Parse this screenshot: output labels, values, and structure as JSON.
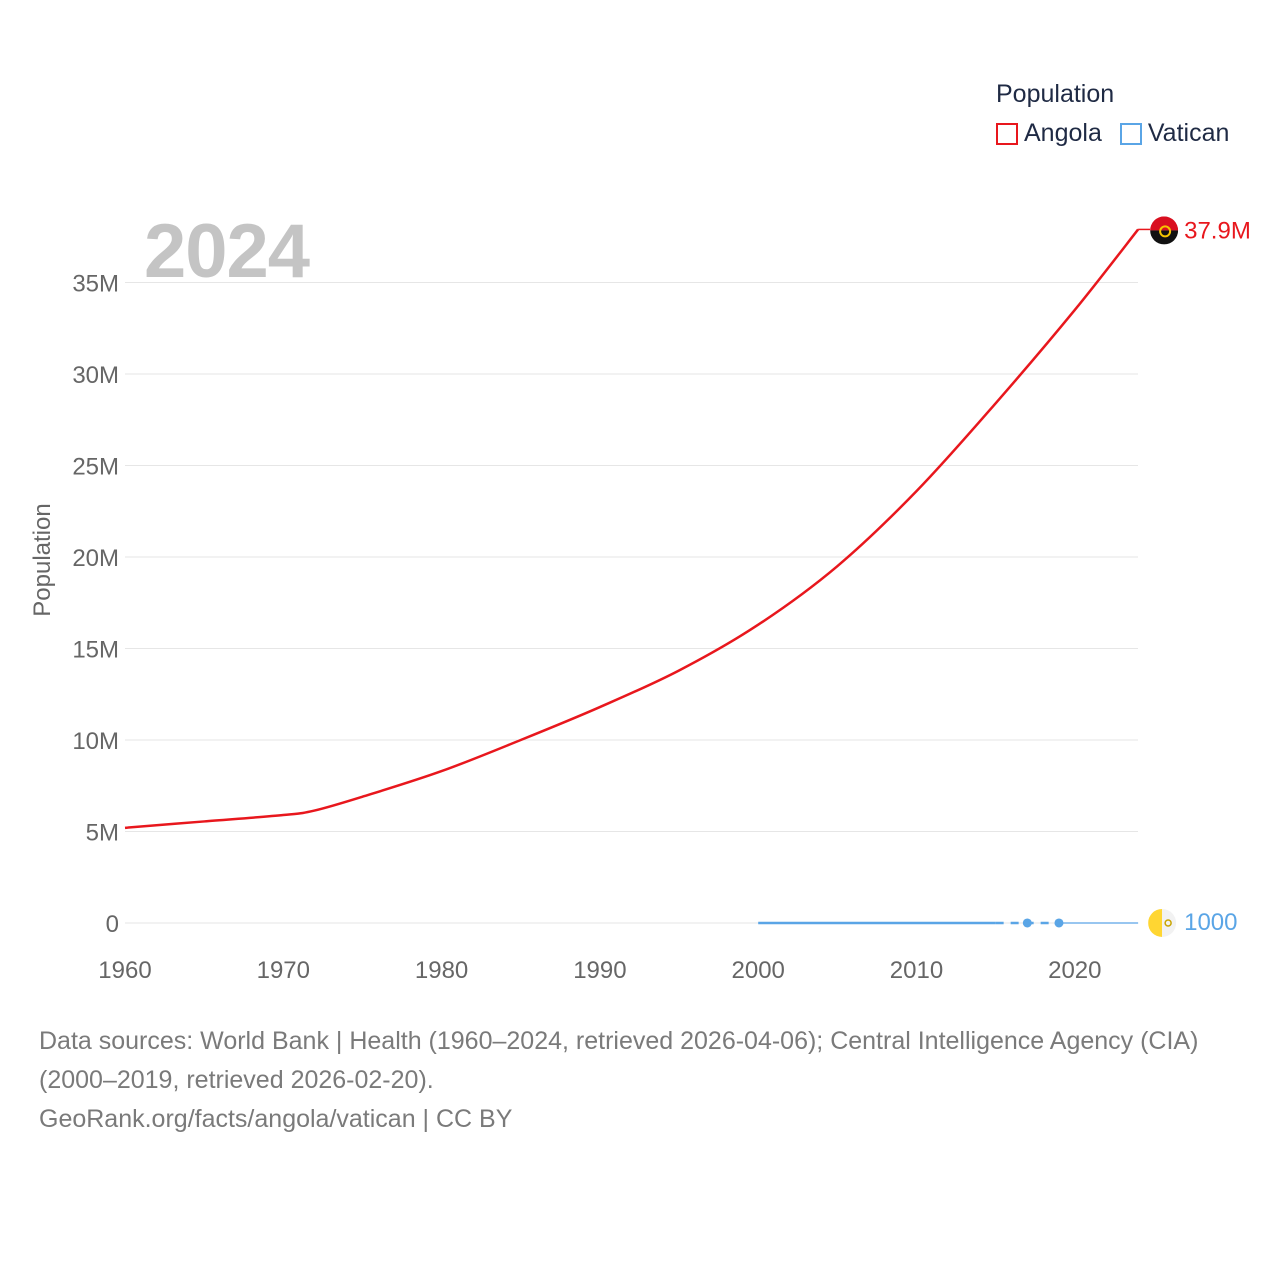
{
  "legend": {
    "title": "Population",
    "items": [
      {
        "name": "Angola",
        "color": "#e8171d"
      },
      {
        "name": "Vatican",
        "color": "#5aa5e6"
      }
    ]
  },
  "year_label": "2024",
  "footer": {
    "sources": "Data sources: World Bank | Health (1960–2024, retrieved 2026-04-06); Central Intelligence Agency (CIA) (2000–2019, retrieved 2026-02-20).",
    "credit": "GeoRank.org/facts/angola/vatican | CC BY"
  },
  "chart_data": {
    "type": "line",
    "title": "",
    "xlabel": "",
    "ylabel": "Population",
    "xlim": [
      1960,
      2024
    ],
    "ylim": [
      0,
      38000000
    ],
    "x_ticks": [
      1960,
      1970,
      1980,
      1990,
      2000,
      2010,
      2020
    ],
    "y_ticks": [
      {
        "value": 0,
        "label": "0"
      },
      {
        "value": 5000000,
        "label": "5M"
      },
      {
        "value": 10000000,
        "label": "10M"
      },
      {
        "value": 15000000,
        "label": "15M"
      },
      {
        "value": 20000000,
        "label": "20M"
      },
      {
        "value": 25000000,
        "label": "25M"
      },
      {
        "value": 30000000,
        "label": "30M"
      },
      {
        "value": 35000000,
        "label": "35M"
      }
    ],
    "series": [
      {
        "name": "Angola",
        "color": "#e8171d",
        "end_label": "37.9M",
        "flag_icon": "angola-flag-icon",
        "x": [
          1960,
          1965,
          1970,
          1972,
          1975,
          1980,
          1985,
          1990,
          1995,
          2000,
          2005,
          2010,
          2015,
          2020,
          2024
        ],
        "values": [
          5200000,
          5550000,
          5900000,
          6150000,
          6900000,
          8300000,
          10000000,
          11800000,
          13800000,
          16300000,
          19500000,
          23600000,
          28400000,
          33500000,
          37900000
        ]
      },
      {
        "name": "Vatican",
        "color": "#5aa5e6",
        "end_label": "1000",
        "flag_icon": "vatican-flag-icon",
        "segments": [
          {
            "style": "solid",
            "x": [
              2000,
              2015
            ],
            "values": [
              900,
              1000
            ]
          },
          {
            "style": "dashed",
            "x": [
              2015,
              2017,
              2019
            ],
            "values": [
              1000,
              1000,
              1000
            ]
          },
          {
            "style": "thin",
            "x": [
              2019,
              2024
            ],
            "values": [
              1000,
              1000
            ]
          }
        ],
        "markers": [
          {
            "x": 2017,
            "value": 1000
          },
          {
            "x": 2019,
            "value": 1000
          }
        ]
      }
    ]
  }
}
